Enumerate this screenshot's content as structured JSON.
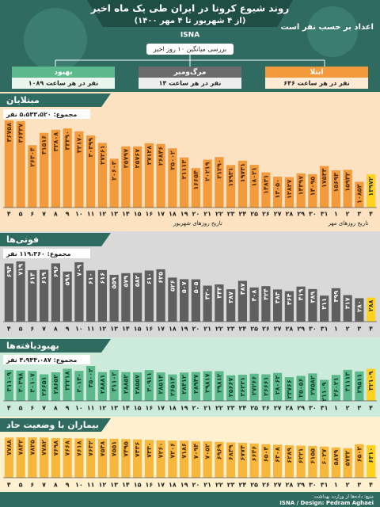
{
  "header": {
    "title": "روند شیوع کرونا در ایران طی یک ماه اخیر",
    "subtitle": "(از ۴ شهریور تا ۴ مهر ۱۴۰۰)",
    "agency": "ISNA",
    "unit_note": "اعداد بر حسب نفر است",
    "average_note": "بررسی میانگین ۱۰ روز اخیر",
    "boxes": [
      {
        "label": "بهبود",
        "text": "۱۰۸۹ نفر در هر ساعت"
      },
      {
        "label": "مرگ‌ومیر",
        "text": "۱۴ نفر در هر ساعت"
      },
      {
        "label": "ابتلا",
        "text": "۶۴۶ نفر در هر ساعت"
      }
    ]
  },
  "footer": {
    "credit": "ISNA / Design: Pedram Aghaei",
    "source": "منبع: داده‌ها از وزارت بهداشت"
  },
  "chart_data": [
    {
      "type": "bar",
      "title": "مبتلایان",
      "total": "مجموع: ۵،۵۳۳،۵۲۰ نفر",
      "x_label_left": "تاریخ روزهای شهریور",
      "x_label_right": "تاریخ روزهای مهر",
      "color": "#f39a3c",
      "highlight_color": "#ffd21f",
      "background": "#fde2c2",
      "categories": [
        "۴",
        "۵",
        "۶",
        "۷",
        "۸",
        "۹",
        "۱۰",
        "۱۱",
        "۱۲",
        "۱۳",
        "۱۴",
        "۱۵",
        "۱۶",
        "۱۷",
        "۱۸",
        "۱۹",
        "۲۰",
        "۲۱",
        "۲۲",
        "۲۳",
        "۲۴",
        "۲۵",
        "۲۶",
        "۲۷",
        "۲۸",
        "۲۹",
        "۳۰",
        "۳۱",
        "۱",
        "۲",
        "۳",
        "۴"
      ],
      "values": [
        36758,
        36437,
        26304,
        31516,
        32808,
        33390,
        32170,
        30399,
        27261,
        20603,
        25797,
        25767,
        27128,
        26846,
        25002,
        21113,
        16654,
        20219,
        21290,
        17931,
        19731,
        18021,
        14831,
        13050,
        12827,
        14397,
        14095,
        17533,
        15693,
        15932,
        10853,
        13972
      ],
      "value_labels": [
        "۳۶۷۵۸",
        "۳۶۴۳۷",
        "۲۶۳۰۴",
        "۳۱۵۱۶",
        "۳۲۸۰۸",
        "۳۳۳۹۰",
        "۳۲۱۷۰",
        "۳۰۳۹۹",
        "۲۷۲۶۱",
        "۲۰۶۰۳",
        "۲۵۷۹۷",
        "۲۵۷۶۷",
        "۲۷۱۲۸",
        "۲۶۸۴۶",
        "۲۵۰۰۲",
        "۲۱۱۱۳",
        "۱۶۶۵۴",
        "۲۰۲۱۹",
        "۲۱۲۹۰",
        "۱۷۹۳۱",
        "۱۹۷۳۱",
        "۱۸۰۲۱",
        "۱۴۸۳۱",
        "۱۳۰۵۰",
        "۱۲۸۲۷",
        "۱۴۳۹۷",
        "۱۴۰۹۵",
        "۱۷۵۳۳",
        "۱۵۶۹۳",
        "۱۵۹۳۲",
        "۱۰۸۵۳",
        "۱۳۹۷۲"
      ]
    },
    {
      "type": "bar",
      "title": "فوتی‌ها",
      "total": "مجموع: ۱۱۹،۳۶۰ نفر",
      "color": "#5f5f5f",
      "highlight_color": "#ffd21f",
      "background": "#d9d9d9",
      "categories": [
        "۴",
        "۵",
        "۶",
        "۷",
        "۸",
        "۹",
        "۱۰",
        "۱۱",
        "۱۲",
        "۱۳",
        "۱۴",
        "۱۵",
        "۱۶",
        "۱۷",
        "۱۸",
        "۱۹",
        "۲۰",
        "۲۱",
        "۲۲",
        "۲۳",
        "۲۴",
        "۲۵",
        "۲۶",
        "۲۷",
        "۲۸",
        "۲۹",
        "۳۰",
        "۳۱",
        "۱",
        "۲",
        "۳",
        "۴"
      ],
      "values": [
        694,
        719,
        614,
        619,
        696,
        598,
        709,
        610,
        616,
        559,
        579,
        582,
        610,
        625,
        526,
        507,
        505,
        430,
        444,
        387,
        487,
        408,
        424,
        384,
        364,
        419,
        389,
        311,
        399,
        317,
        280,
        288
      ],
      "value_labels": [
        "۶۹۴",
        "۷۱۹",
        "۶۱۴",
        "۶۱۹",
        "۶۹۶",
        "۵۹۸",
        "۷۰۹",
        "۶۱۰",
        "۶۱۶",
        "۵۵۹",
        "۵۷۹",
        "۵۸۲",
        "۶۱۰",
        "۶۲۵",
        "۵۲۶",
        "۵۰۷",
        "۵۰۵",
        "۴۳۰",
        "۴۴۴",
        "۳۸۷",
        "۴۸۷",
        "۴۰۸",
        "۴۲۴",
        "۳۸۴",
        "۳۶۴",
        "۴۱۹",
        "۳۸۹",
        "۳۱۱",
        "۳۹۹",
        "۳۱۷",
        "۲۸۰",
        "۲۸۸"
      ]
    },
    {
      "type": "bar",
      "title": "بهبودیافته‌ها",
      "total": "مجموع: ۴،۹۴۴،۰۸۷ نفر",
      "color": "#5bb98c",
      "highlight_color": "#ffd21f",
      "background": "#cdebdc",
      "categories": [
        "۴",
        "۵",
        "۶",
        "۷",
        "۸",
        "۹",
        "۱۰",
        "۱۱",
        "۱۲",
        "۱۳",
        "۱۴",
        "۱۵",
        "۱۶",
        "۱۷",
        "۱۸",
        "۱۹",
        "۲۰",
        "۲۱",
        "۲۲",
        "۲۳",
        "۲۴",
        "۲۵",
        "۲۶",
        "۲۷",
        "۲۸",
        "۲۹",
        "۳۰",
        "۳۱",
        "۱",
        "۲",
        "۳",
        "۴"
      ],
      "values": [
        31109,
        30398,
        30107,
        26651,
        28652,
        32218,
        30140,
        35002,
        28881,
        31102,
        28852,
        28557,
        30911,
        28514,
        26514,
        28412,
        28947,
        29817,
        29812,
        25667,
        26221,
        27266,
        26661,
        28062,
        23766,
        25056,
        27582,
        21109,
        26021,
        31113,
        29511,
        32109
      ],
      "value_labels": [
        "۳۱۱۰۹",
        "۳۰۳۹۸",
        "۳۰۱۰۷",
        "۲۶۶۵۱",
        "۲۸۶۵۲",
        "۳۲۲۱۸",
        "۳۰۱۴۰",
        "۳۵۰۰۲",
        "۲۸۸۸۱",
        "۳۱۱۰۲",
        "۲۸۸۵۲",
        "۲۸۵۵۷",
        "۳۰۹۱۱",
        "۲۸۵۱۴",
        "۲۶۵۱۴",
        "۲۸۴۱۲",
        "۲۸۹۴۷",
        "۲۹۸۱۷",
        "۲۹۸۱۲",
        "۲۵۶۶۷",
        "۲۶۲۲۱",
        "۲۷۲۶۶",
        "۲۶۶۶۱",
        "۲۸۰۶۲",
        "۲۳۷۶۶",
        "۲۵۰۵۶",
        "۲۷۵۸۲",
        "۲۱۱۰۹",
        "۲۶۰۲۱",
        "۳۱۱۱۳",
        "۲۹۵۱۱",
        "۳۲۱۰۹"
      ]
    },
    {
      "type": "bar",
      "title": "بیماران با وضعیت حاد",
      "color": "#f6b73c",
      "highlight_color": "#ffd21f",
      "background": "#fff1cf",
      "categories": [
        "۴",
        "۵",
        "۶",
        "۷",
        "۸",
        "۹",
        "۱۰",
        "۱۱",
        "۱۲",
        "۱۳",
        "۱۴",
        "۱۵",
        "۱۶",
        "۱۷",
        "۱۸",
        "۱۹",
        "۲۰",
        "۲۱",
        "۲۲",
        "۲۳",
        "۲۴",
        "۲۵",
        "۲۶",
        "۲۷",
        "۲۸",
        "۲۹",
        "۳۰",
        "۳۱",
        "۱",
        "۲",
        "۳",
        "۴"
      ],
      "values": [
        7788,
        7842,
        7825,
        7782,
        7698,
        7668,
        7618,
        7642,
        7548,
        7551,
        7495,
        7436,
        7330,
        7260,
        7206,
        7186,
        7094,
        7052,
        6969,
        6849,
        6774,
        6646,
        6504,
        6408,
        6289,
        6221,
        6155,
        6027,
        5879,
        5732,
        6502,
        6310
      ],
      "value_labels": [
        "۷۷۸۸",
        "۷۸۴۲",
        "۷۸۲۵",
        "۷۷۸۲",
        "۷۶۹۸",
        "۷۶۶۸",
        "۷۶۱۸",
        "۷۶۴۲",
        "۷۵۴۸",
        "۷۵۵۱",
        "۷۴۹۵",
        "۷۴۳۶",
        "۷۳۳۰",
        "۷۲۶۰",
        "۷۲۰۶",
        "۷۱۸۶",
        "۷۰۹۴",
        "۷۰۵۲",
        "۶۹۶۹",
        "۶۸۴۹",
        "۶۷۷۴",
        "۶۶۴۶",
        "۶۵۰۴",
        "۶۴۰۸",
        "۶۲۸۹",
        "۶۲۲۱",
        "۶۱۵۵",
        "۶۰۲۷",
        "۵۸۷۹",
        "۵۷۳۲",
        "۶۵۰۲",
        "۶۳۱۰"
      ]
    }
  ]
}
